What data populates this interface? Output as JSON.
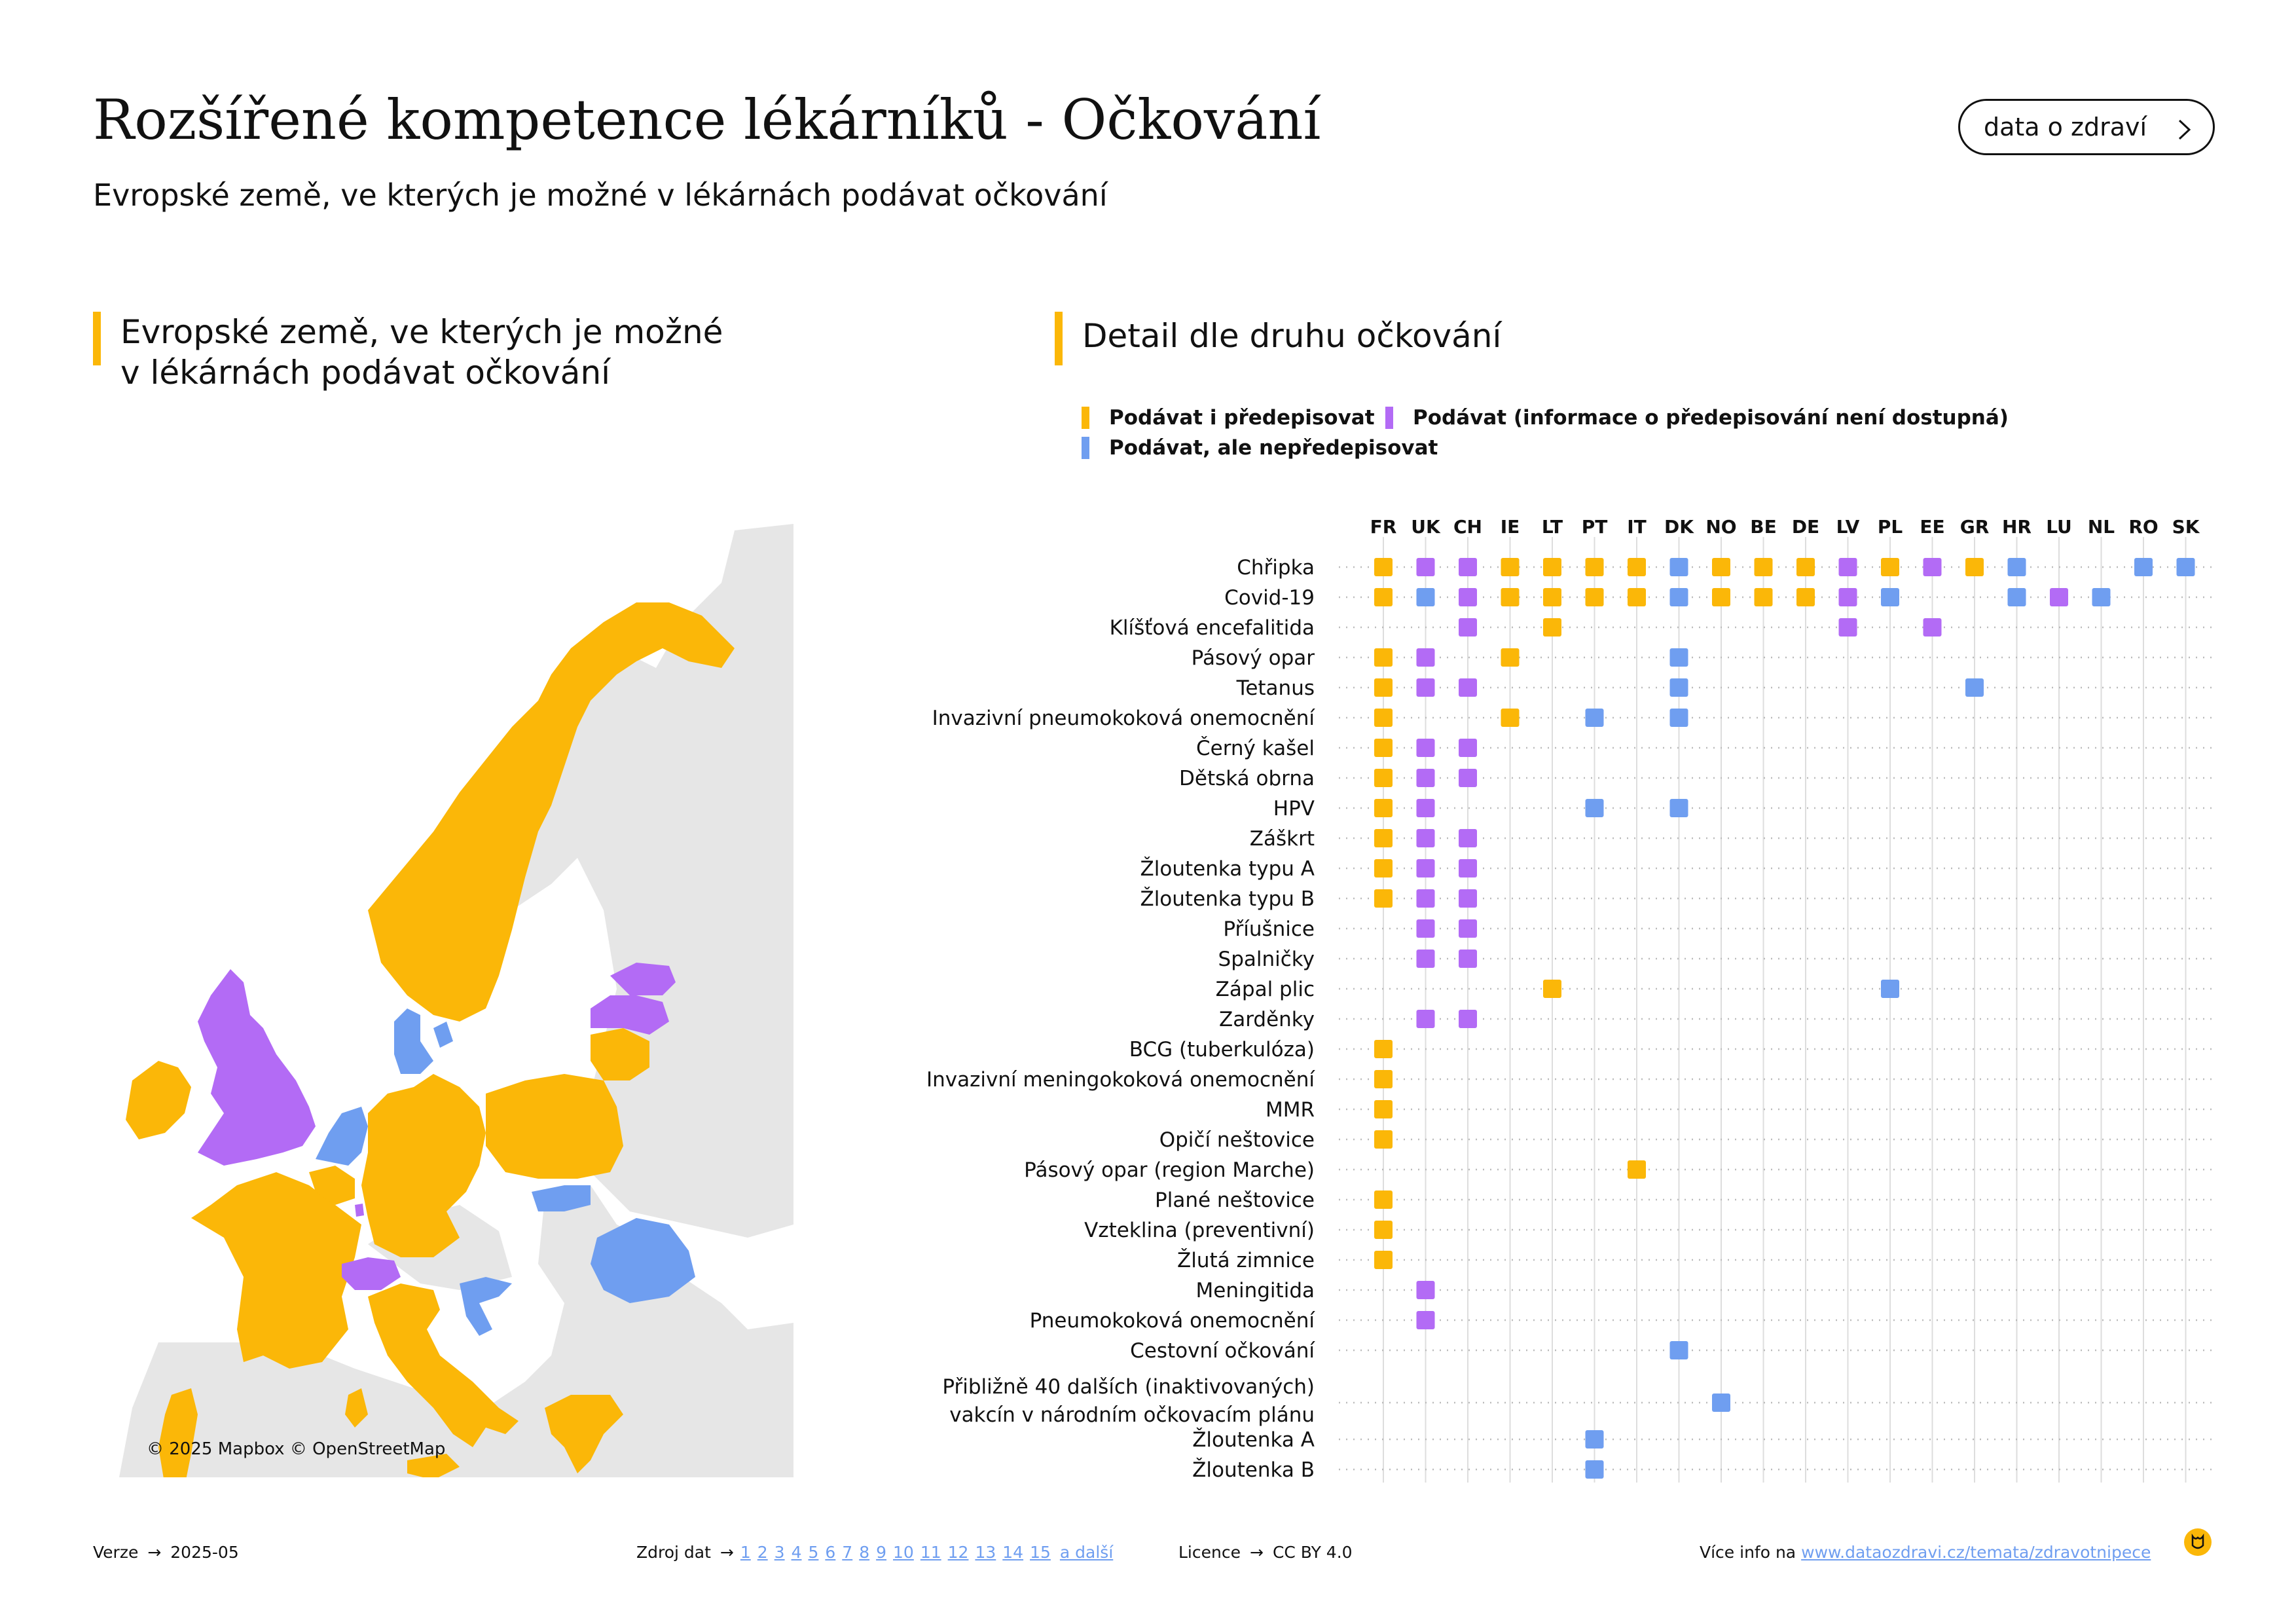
{
  "title": "Rozšířené kompetence lékárníků - Očkování",
  "subtitle": "Evropské země, ve kterých je možné v lékárnách podávat očkování",
  "brand_button": "data o zdraví",
  "map_section": {
    "title_line1": "Evropské země, ve kterých je možné",
    "title_line2": "v lékárnách podávat očkování",
    "credit": "© 2025 Mapbox © OpenStreetMap"
  },
  "detail_section": {
    "title": "Detail dle druhu očkování"
  },
  "colors": {
    "accent": "#fbb708",
    "prescribe": "#fbb708",
    "no_info": "#b36bf5",
    "no_prescribe": "#6f9ef0",
    "land": "#e6e6e6"
  },
  "legend": [
    {
      "label": "Podávat i předepisovat",
      "color": "#fbb708"
    },
    {
      "label": "Podávat (informace o předepisování není dostupná)",
      "color": "#b36bf5"
    },
    {
      "label": "Podávat, ale nepředepisovat",
      "color": "#6f9ef0"
    }
  ],
  "chart_data": {
    "type": "dot-matrix",
    "x": [
      "FR",
      "UK",
      "CH",
      "IE",
      "LT",
      "PT",
      "IT",
      "DK",
      "NO",
      "BE",
      "DE",
      "LV",
      "PL",
      "EE",
      "GR",
      "HR",
      "LU",
      "NL",
      "RO",
      "SK"
    ],
    "rows": [
      {
        "label": "Chřipka",
        "cells": {
          "FR": "Y",
          "UK": "P",
          "CH": "P",
          "IE": "Y",
          "LT": "Y",
          "PT": "Y",
          "IT": "Y",
          "DK": "B",
          "NO": "Y",
          "BE": "Y",
          "DE": "Y",
          "LV": "P",
          "PL": "Y",
          "EE": "P",
          "GR": "Y",
          "HR": "B",
          "RO": "B",
          "SK": "B"
        }
      },
      {
        "label": "Covid-19",
        "cells": {
          "FR": "Y",
          "UK": "B",
          "CH": "P",
          "IE": "Y",
          "LT": "Y",
          "PT": "Y",
          "IT": "Y",
          "DK": "B",
          "NO": "Y",
          "BE": "Y",
          "DE": "Y",
          "LV": "P",
          "PL": "B",
          "HR": "B",
          "LU": "P",
          "NL": "B"
        }
      },
      {
        "label": "Klíšťová encefalitida",
        "cells": {
          "CH": "P",
          "LT": "Y",
          "LV": "P",
          "EE": "P"
        }
      },
      {
        "label": "Pásový opar",
        "cells": {
          "FR": "Y",
          "UK": "P",
          "IE": "Y",
          "DK": "B"
        }
      },
      {
        "label": "Tetanus",
        "cells": {
          "FR": "Y",
          "UK": "P",
          "CH": "P",
          "DK": "B",
          "GR": "B"
        }
      },
      {
        "label": "Invazivní pneumokoková onemocnění",
        "cells": {
          "FR": "Y",
          "IE": "Y",
          "PT": "B",
          "DK": "B"
        }
      },
      {
        "label": "Černý kašel",
        "cells": {
          "FR": "Y",
          "UK": "P",
          "CH": "P"
        }
      },
      {
        "label": "Dětská obrna",
        "cells": {
          "FR": "Y",
          "UK": "P",
          "CH": "P"
        }
      },
      {
        "label": "HPV",
        "cells": {
          "FR": "Y",
          "UK": "P",
          "PT": "B",
          "DK": "B"
        }
      },
      {
        "label": "Záškrt",
        "cells": {
          "FR": "Y",
          "UK": "P",
          "CH": "P"
        }
      },
      {
        "label": "Žloutenka typu A",
        "cells": {
          "FR": "Y",
          "UK": "P",
          "CH": "P"
        }
      },
      {
        "label": "Žloutenka typu B",
        "cells": {
          "FR": "Y",
          "UK": "P",
          "CH": "P"
        }
      },
      {
        "label": "Příušnice",
        "cells": {
          "UK": "P",
          "CH": "P"
        }
      },
      {
        "label": "Spalničky",
        "cells": {
          "UK": "P",
          "CH": "P"
        }
      },
      {
        "label": "Zápal plic",
        "cells": {
          "LT": "Y",
          "PL": "B"
        }
      },
      {
        "label": "Zarděnky",
        "cells": {
          "UK": "P",
          "CH": "P"
        }
      },
      {
        "label": "BCG (tuberkulóza)",
        "cells": {
          "FR": "Y"
        }
      },
      {
        "label": "Invazivní meningokoková onemocnění",
        "cells": {
          "FR": "Y"
        }
      },
      {
        "label": "MMR",
        "cells": {
          "FR": "Y"
        }
      },
      {
        "label": "Opičí neštovice",
        "cells": {
          "FR": "Y"
        }
      },
      {
        "label": "Pásový opar (region Marche)",
        "cells": {
          "IT": "Y"
        }
      },
      {
        "label": "Plané neštovice",
        "cells": {
          "FR": "Y"
        }
      },
      {
        "label": "Vzteklina (preventivní)",
        "cells": {
          "FR": "Y"
        }
      },
      {
        "label": "Žlutá zimnice",
        "cells": {
          "FR": "Y"
        }
      },
      {
        "label": "Meningitida",
        "cells": {
          "UK": "P"
        }
      },
      {
        "label": "Pneumokoková onemocnění",
        "cells": {
          "UK": "P"
        }
      },
      {
        "label": "Cestovní očkování",
        "cells": {
          "DK": "B"
        }
      },
      {
        "label": "Přibližně 40 dalších (inaktivovaných)",
        "label2": "vakcín v národním očkovacím plánu",
        "cells": {
          "NO": "B"
        }
      },
      {
        "label": "Žloutenka A",
        "cells": {
          "PT": "B"
        }
      },
      {
        "label": "Žloutenka B",
        "cells": {
          "PT": "B"
        }
      }
    ],
    "category_codes": {
      "Y": "Podávat i předepisovat",
      "P": "Podávat (informace o předepisování není dostupná)",
      "B": "Podávat, ale nepředepisovat"
    }
  },
  "map_data": {
    "type": "choropleth",
    "prescribe": [
      "FR",
      "IE",
      "LT",
      "PT",
      "IT",
      "NO",
      "BE",
      "DE",
      "PL",
      "GR"
    ],
    "no_info": [
      "UK",
      "CH",
      "LV",
      "EE",
      "LU"
    ],
    "no_prescribe": [
      "DK",
      "HR",
      "NL",
      "RO",
      "SK"
    ]
  },
  "footer": {
    "version_label": "Verze",
    "version": "2025-05",
    "sources_label": "Zdroj dat",
    "sources": [
      "1",
      "2",
      "3",
      "4",
      "5",
      "6",
      "7",
      "8",
      "9",
      "10",
      "11",
      "12",
      "13",
      "14",
      "15"
    ],
    "sources_more": "a další",
    "license_label": "Licence",
    "license": "CC BY 4.0",
    "more_label": "Více info na",
    "more_url": "www.dataozdravi.cz/temata/zdravotnipece"
  }
}
